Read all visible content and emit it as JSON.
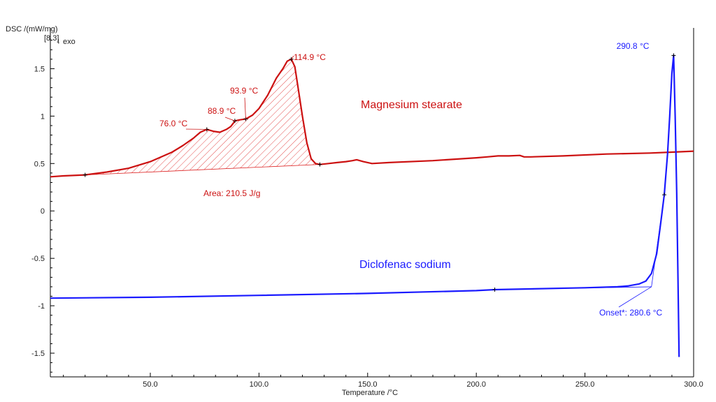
{
  "chart_data": {
    "type": "line",
    "title": "",
    "ylabel": "DSC /(mW/mg)",
    "ylabel_sub": "[8.3]",
    "exo_label": "exo",
    "xlabel": "Temperature /°C",
    "xlim": [
      4,
      300
    ],
    "ylim": [
      -1.75,
      1.93
    ],
    "x_ticks": [
      {
        "value": 50,
        "label": "50.0"
      },
      {
        "value": 100,
        "label": "100.0"
      },
      {
        "value": 150,
        "label": "150.0"
      },
      {
        "value": 200,
        "label": "200.0"
      },
      {
        "value": 250,
        "label": "250.0"
      },
      {
        "value": 300,
        "label": "300.0"
      }
    ],
    "y_ticks": [
      {
        "value": 1.5,
        "label": "1.5"
      },
      {
        "value": 1,
        "label": "1"
      },
      {
        "value": 0.5,
        "label": "0.5"
      },
      {
        "value": 0,
        "label": "0"
      },
      {
        "value": -0.5,
        "label": "-0.5"
      },
      {
        "value": -1,
        "label": "-1"
      },
      {
        "value": -1.5,
        "label": "-1.5"
      }
    ],
    "series": [
      {
        "name": "Magnesium stearate",
        "color": "#cc1111",
        "x": [
          4,
          10,
          20,
          30,
          40,
          50,
          60,
          65,
          70,
          73,
          76,
          79,
          82,
          85,
          87,
          89,
          91,
          93.9,
          97,
          100,
          104,
          108,
          111,
          113,
          114.9,
          116.5,
          118,
          120,
          122,
          124,
          126,
          128,
          132,
          136,
          140,
          143,
          145,
          148,
          152,
          160,
          180,
          200,
          205,
          210,
          215,
          220,
          222,
          225,
          240,
          260,
          280,
          290,
          300
        ],
        "y": [
          0.36,
          0.37,
          0.38,
          0.41,
          0.45,
          0.52,
          0.62,
          0.69,
          0.77,
          0.83,
          0.86,
          0.84,
          0.83,
          0.86,
          0.89,
          0.95,
          0.96,
          0.97,
          1.01,
          1.08,
          1.22,
          1.4,
          1.5,
          1.58,
          1.6,
          1.52,
          1.3,
          1.0,
          0.72,
          0.55,
          0.5,
          0.49,
          0.5,
          0.51,
          0.52,
          0.53,
          0.54,
          0.52,
          0.5,
          0.51,
          0.53,
          0.56,
          0.57,
          0.58,
          0.58,
          0.585,
          0.57,
          0.57,
          0.58,
          0.6,
          0.61,
          0.62,
          0.63
        ]
      },
      {
        "name": "Diclofenac sodium",
        "color": "#1a1aff",
        "x": [
          4,
          50,
          100,
          150,
          200,
          208.5,
          250,
          265,
          270,
          275,
          278,
          280.6,
          283,
          285,
          286.5,
          288,
          289,
          290,
          290.8,
          291.5,
          292.2,
          292.8,
          293.3
        ],
        "y": [
          -0.92,
          -0.91,
          -0.89,
          -0.87,
          -0.84,
          -0.83,
          -0.81,
          -0.8,
          -0.79,
          -0.77,
          -0.74,
          -0.66,
          -0.45,
          -0.1,
          0.17,
          0.6,
          1.0,
          1.45,
          1.64,
          1.0,
          0.2,
          -0.7,
          -1.54
        ]
      }
    ],
    "baseline": {
      "x": [
        20,
        128
      ],
      "y": [
        0.38,
        0.49
      ]
    },
    "peak_markers": {
      "x": [
        20,
        76.0,
        88.9,
        93.9,
        114.9,
        128
      ],
      "y": [
        0.38,
        0.86,
        0.95,
        0.97,
        1.6,
        0.49
      ]
    },
    "blue_markers": {
      "x": [
        208.5,
        286.5,
        290.8
      ],
      "y": [
        -0.83,
        0.17,
        1.64
      ]
    },
    "onset_tangents": [
      {
        "x": [
          208.5,
          280.6
        ],
        "y": [
          -0.83,
          -0.8
        ]
      },
      {
        "x": [
          286.5,
          280.6
        ],
        "y": [
          0.17,
          -0.8
        ]
      }
    ],
    "annotations": [
      {
        "id": "peak-114",
        "text": "114.9 °C",
        "color": "#cc1111",
        "x": 114.9,
        "y": 1.6
      },
      {
        "id": "peak-93",
        "text": "93.9 °C",
        "color": "#cc1111",
        "x": 93.9,
        "y": 0.97
      },
      {
        "id": "peak-88",
        "text": "88.9 °C",
        "color": "#cc1111",
        "x": 88.9,
        "y": 0.95
      },
      {
        "id": "peak-76",
        "text": "76.0 °C",
        "color": "#cc1111",
        "x": 76.0,
        "y": 0.86
      },
      {
        "id": "area",
        "text": "Area: 210.5 J/g",
        "color": "#cc1111"
      },
      {
        "id": "peak-290",
        "text": "290.8 °C",
        "color": "#1a1aff",
        "x": 290.8,
        "y": 1.64
      },
      {
        "id": "onset",
        "text": "Onset*: 280.6 °C",
        "color": "#1a1aff",
        "x": 280.6,
        "y": -0.8
      }
    ],
    "series_labels": [
      {
        "text": "Magnesium stearate",
        "color": "#cc1111"
      },
      {
        "text": "Diclofenac sodium",
        "color": "#1a1aff"
      }
    ]
  }
}
